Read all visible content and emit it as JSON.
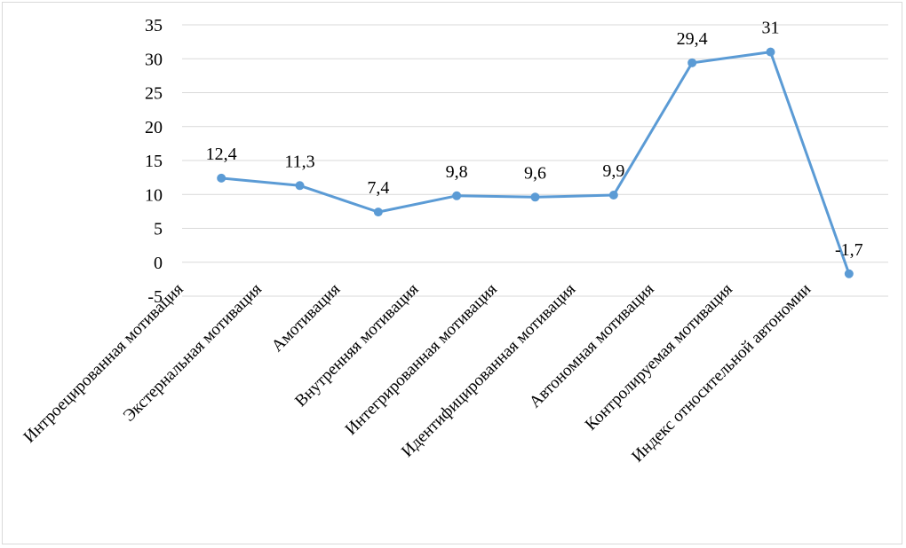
{
  "chart_data": {
    "type": "line",
    "title": "",
    "xlabel": "",
    "ylabel": "",
    "ylim": [
      -5,
      35
    ],
    "yticks": [
      -5,
      0,
      5,
      10,
      15,
      20,
      25,
      30,
      35
    ],
    "grid": true,
    "legend": "none",
    "categories": [
      "Интроецированная мотивация",
      "Экстернальная мотивация",
      "Амотивация",
      "Внутренняя мотивация",
      "Интегрированная мотивация",
      "Идентифицированная мотивация",
      "Автономная мотивация",
      "Контролируемая мотивация",
      "Индекс относительной автономии"
    ],
    "series": [
      {
        "values": [
          12.4,
          11.3,
          7.4,
          9.8,
          9.6,
          9.9,
          29.4,
          31,
          -1.7
        ],
        "labels": [
          "12,4",
          "11,3",
          "7,4",
          "9,8",
          "9,6",
          "9,9",
          "29,4",
          "31",
          "-1,7"
        ]
      }
    ],
    "colors": {
      "line": "#5b9bd5",
      "grid": "#d9d9d9"
    }
  }
}
